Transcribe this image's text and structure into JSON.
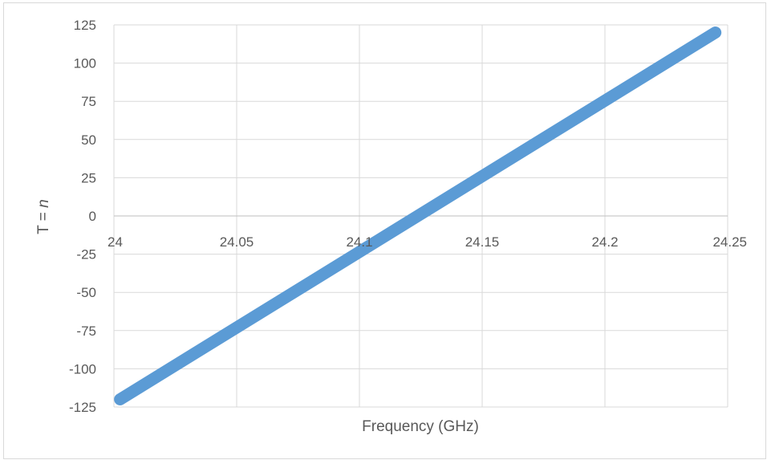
{
  "chart_data": {
    "type": "line",
    "title": "",
    "xlabel": "Frequency (GHz)",
    "ylabel_prefix": "T = ",
    "ylabel_var": "n",
    "xlim": [
      24,
      24.25
    ],
    "ylim": [
      -125,
      125
    ],
    "x_ticks": [
      "24",
      "24.05",
      "24.1",
      "24.15",
      "24.2",
      "24.25"
    ],
    "y_ticks": [
      "125",
      "100",
      "75",
      "50",
      "25",
      "0",
      "-25",
      "-50",
      "-75",
      "-100",
      "-125"
    ],
    "grid": true,
    "legend": "none",
    "series": [
      {
        "color": "#5B9BD5",
        "x": [
          24.0025,
          24.245
        ],
        "y": [
          -120,
          120
        ]
      }
    ]
  }
}
